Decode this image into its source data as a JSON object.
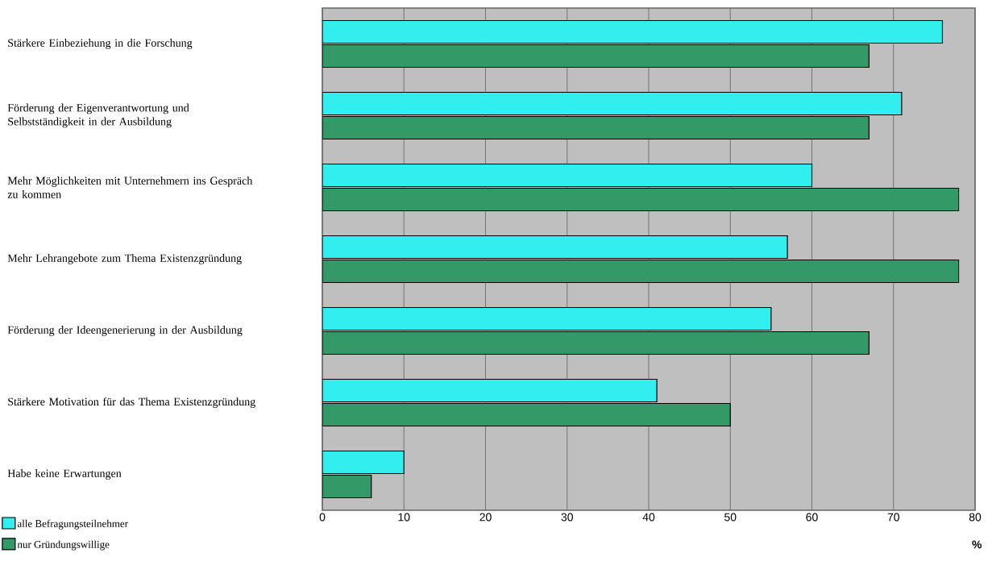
{
  "chart_data": {
    "type": "bar",
    "orientation": "horizontal",
    "xlabel": "%",
    "categories": [
      "Stärkere Einbeziehung in die Forschung",
      "Förderung der Eigenverantwortung und Selbstständigkeit in der Ausbildung",
      "Mehr Möglichkeiten mit Unternehmern ins Gespräch zu kommen",
      "Mehr Lehrangebote zum Thema Existenzgründung",
      "Förderung der Ideengenerierung in der Ausbildung",
      "Stärkere Motivation für das Thema Existenzgründung",
      "Habe keine Erwartungen"
    ],
    "series": [
      {
        "name": "alle Befragungsteilnehmer",
        "color": "#33eeee",
        "values": [
          76,
          71,
          60,
          57,
          55,
          41,
          10
        ]
      },
      {
        "name": "nur Gründungswillige",
        "color": "#339966",
        "values": [
          67,
          67,
          78,
          78,
          67,
          50,
          6
        ]
      }
    ],
    "xlim": [
      0,
      80
    ],
    "xticks": [
      0,
      10,
      20,
      30,
      40,
      50,
      60,
      70,
      80
    ],
    "grid": "x",
    "legend": "bottom left"
  }
}
